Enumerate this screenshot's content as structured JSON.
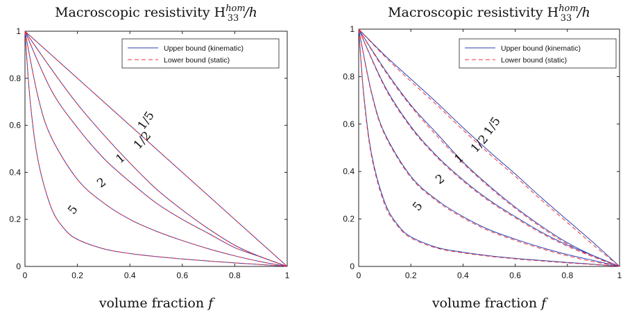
{
  "chart_data": [
    {
      "type": "line",
      "title": "Macroscopic resistivity H",
      "title_sub": "33",
      "title_sup": "hom",
      "title_suffix": "/h",
      "xlabel": "volume fraction f",
      "xlim": [
        0,
        1
      ],
      "ylim": [
        0,
        1
      ],
      "xticks": [
        "0",
        "0.2",
        "0.4",
        "0.6",
        "0.8",
        "1"
      ],
      "yticks": [
        "0",
        "0.2",
        "0.4",
        "0.6",
        "0.8",
        "1"
      ],
      "legend": {
        "placement": "top-right",
        "entries": [
          "Upper bound (kinematic)",
          "Lower bound (static)"
        ]
      },
      "colors": {
        "upper": "#2b3fae",
        "lower": "#e8323c"
      },
      "curve_labels": [
        "1/5",
        "1/2",
        "1",
        "2",
        "5"
      ],
      "series": [
        {
          "label": "1/5",
          "x": [
            0,
            0.1,
            0.2,
            0.3,
            0.4,
            0.5,
            0.6,
            0.7,
            0.8,
            0.9,
            1
          ],
          "upper": [
            1,
            0.9,
            0.8,
            0.7,
            0.6,
            0.5,
            0.4,
            0.3,
            0.2,
            0.1,
            0
          ],
          "lower": [
            1,
            0.9,
            0.8,
            0.7,
            0.6,
            0.5,
            0.4,
            0.3,
            0.2,
            0.1,
            0
          ]
        },
        {
          "label": "1/2",
          "x": [
            0,
            0.1,
            0.2,
            0.3,
            0.4,
            0.5,
            0.6,
            0.7,
            0.8,
            0.9,
            1
          ],
          "upper": [
            1,
            0.84,
            0.69,
            0.56,
            0.44,
            0.33,
            0.24,
            0.16,
            0.09,
            0.04,
            0
          ],
          "lower": [
            1,
            0.84,
            0.69,
            0.56,
            0.44,
            0.33,
            0.24,
            0.16,
            0.09,
            0.04,
            0
          ]
        },
        {
          "label": "1",
          "x": [
            0,
            0.1,
            0.2,
            0.3,
            0.4,
            0.5,
            0.6,
            0.7,
            0.8,
            0.9,
            1
          ],
          "upper": [
            1,
            0.75,
            0.59,
            0.46,
            0.36,
            0.27,
            0.2,
            0.14,
            0.08,
            0.04,
            0
          ],
          "lower": [
            1,
            0.75,
            0.59,
            0.46,
            0.36,
            0.27,
            0.2,
            0.14,
            0.08,
            0.04,
            0
          ]
        },
        {
          "label": "2",
          "x": [
            0,
            0.05,
            0.1,
            0.2,
            0.3,
            0.4,
            0.5,
            0.6,
            0.7,
            0.8,
            0.9,
            1
          ],
          "upper": [
            1,
            0.72,
            0.55,
            0.37,
            0.27,
            0.2,
            0.15,
            0.11,
            0.075,
            0.045,
            0.02,
            0
          ],
          "lower": [
            1,
            0.72,
            0.55,
            0.37,
            0.27,
            0.2,
            0.15,
            0.11,
            0.075,
            0.045,
            0.02,
            0
          ]
        },
        {
          "label": "5",
          "x": [
            0,
            0.02,
            0.05,
            0.1,
            0.15,
            0.2,
            0.3,
            0.4,
            0.5,
            0.6,
            0.7,
            0.8,
            0.9,
            1
          ],
          "upper": [
            1,
            0.7,
            0.45,
            0.25,
            0.16,
            0.115,
            0.075,
            0.055,
            0.042,
            0.032,
            0.023,
            0.015,
            0.008,
            0
          ],
          "lower": [
            1,
            0.7,
            0.45,
            0.25,
            0.16,
            0.115,
            0.075,
            0.055,
            0.042,
            0.032,
            0.023,
            0.015,
            0.008,
            0
          ]
        }
      ]
    },
    {
      "type": "line",
      "title": "Macroscopic resistivity H",
      "title_sub": "33",
      "title_sup": "hom",
      "title_suffix": "/h",
      "xlabel": "volume fraction f",
      "xlim": [
        0,
        1
      ],
      "ylim": [
        0,
        1
      ],
      "xticks": [
        "0",
        "0.2",
        "0.4",
        "0.6",
        "0.8",
        "1"
      ],
      "yticks": [
        "0",
        "0.2",
        "0.4",
        "0.6",
        "0.8",
        "1"
      ],
      "legend": {
        "placement": "top-right",
        "entries": [
          "Upper bound (kinematic)",
          "Lower bound (static)"
        ]
      },
      "colors": {
        "upper": "#2b3fae",
        "lower": "#e8323c"
      },
      "curve_labels": [
        "1/5",
        "1/2",
        "1",
        "2",
        "5"
      ],
      "series": [
        {
          "label": "1/5",
          "x": [
            0,
            0.1,
            0.2,
            0.3,
            0.4,
            0.5,
            0.6,
            0.7,
            0.8,
            0.9,
            1
          ],
          "upper": [
            1,
            0.89,
            0.79,
            0.69,
            0.585,
            0.485,
            0.39,
            0.29,
            0.195,
            0.1,
            0
          ],
          "lower": [
            1,
            0.885,
            0.78,
            0.68,
            0.575,
            0.475,
            0.38,
            0.28,
            0.185,
            0.09,
            0
          ]
        },
        {
          "label": "1/2",
          "x": [
            0,
            0.1,
            0.2,
            0.3,
            0.4,
            0.5,
            0.6,
            0.7,
            0.8,
            0.9,
            1
          ],
          "upper": [
            1,
            0.83,
            0.68,
            0.56,
            0.44,
            0.34,
            0.25,
            0.17,
            0.1,
            0.045,
            0
          ],
          "lower": [
            1,
            0.825,
            0.675,
            0.55,
            0.435,
            0.335,
            0.245,
            0.165,
            0.095,
            0.04,
            0
          ]
        },
        {
          "label": "1",
          "x": [
            0,
            0.1,
            0.2,
            0.3,
            0.4,
            0.5,
            0.6,
            0.7,
            0.8,
            0.9,
            1
          ],
          "upper": [
            1,
            0.76,
            0.59,
            0.465,
            0.365,
            0.28,
            0.21,
            0.145,
            0.09,
            0.045,
            0
          ],
          "lower": [
            1,
            0.755,
            0.585,
            0.46,
            0.36,
            0.275,
            0.205,
            0.14,
            0.085,
            0.04,
            0
          ]
        },
        {
          "label": "2",
          "x": [
            0,
            0.05,
            0.1,
            0.2,
            0.3,
            0.4,
            0.5,
            0.6,
            0.7,
            0.8,
            0.9,
            1
          ],
          "upper": [
            1,
            0.73,
            0.56,
            0.38,
            0.28,
            0.21,
            0.155,
            0.115,
            0.08,
            0.05,
            0.025,
            0
          ],
          "lower": [
            1,
            0.725,
            0.555,
            0.375,
            0.275,
            0.205,
            0.15,
            0.11,
            0.075,
            0.045,
            0.02,
            0
          ]
        },
        {
          "label": "5",
          "x": [
            0,
            0.02,
            0.05,
            0.1,
            0.15,
            0.2,
            0.3,
            0.4,
            0.5,
            0.6,
            0.7,
            0.8,
            0.9,
            1
          ],
          "upper": [
            1,
            0.72,
            0.47,
            0.27,
            0.175,
            0.125,
            0.08,
            0.06,
            0.045,
            0.034,
            0.025,
            0.017,
            0.009,
            0
          ],
          "lower": [
            1,
            0.71,
            0.46,
            0.26,
            0.17,
            0.12,
            0.077,
            0.057,
            0.043,
            0.032,
            0.023,
            0.015,
            0.008,
            0
          ]
        }
      ]
    }
  ]
}
